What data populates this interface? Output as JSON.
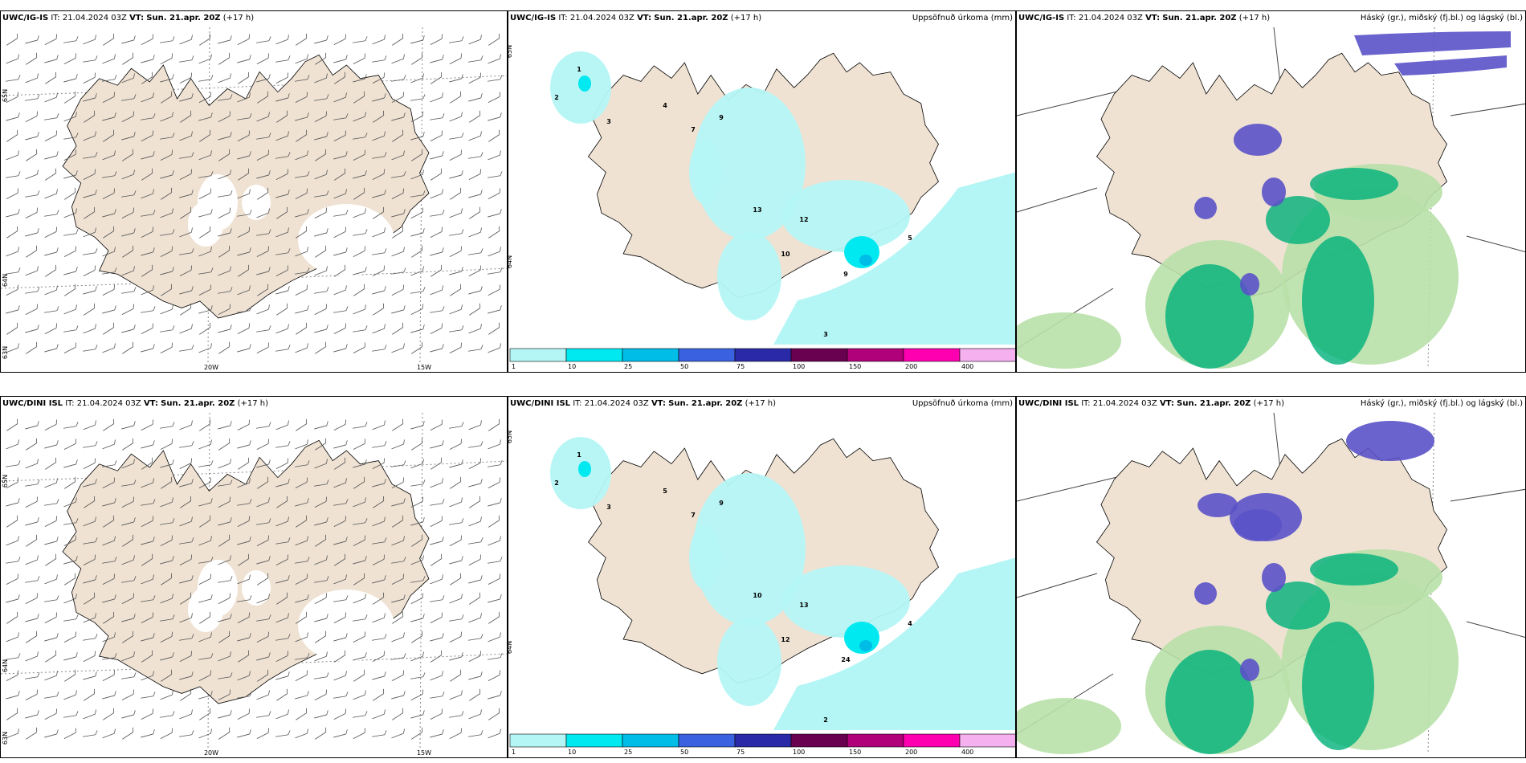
{
  "colors": {
    "land": "#efe2d3",
    "ice": "#ffffff",
    "precip_1": "#b4f5f5",
    "precip_10": "#00e8f0",
    "precip_25": "#00bde8",
    "precip_50": "#3a62e0",
    "precip_75": "#2a2aa8",
    "precip_100": "#6a0050",
    "precip_150": "#b0007a",
    "precip_200": "#ff00b0",
    "precip_400": "#f5b0f0",
    "cloud_high": "#5a52c8",
    "cloud_mid": "#00b07a",
    "cloud_low": "#b8e0a8"
  },
  "icons": {
    "wind_barb": "wind-barb-icon"
  },
  "rows": [
    {
      "model": "UWC/IG-IS",
      "it_text": "IT: 21.04.2024 03Z",
      "vt_label": "VT:",
      "vt_value": "Sun. 21.apr. 20Z",
      "lead": "(+17 h)",
      "wind_axis": {
        "lat_labels": [
          "65N",
          "64N",
          "63N"
        ],
        "lon_labels": [
          "20W",
          "15W"
        ]
      },
      "precip_title": "Uppsöfnuð úrkoma (mm)",
      "cloud_title": "Háský (gr.), miðský (fj.bl.) og lágský (bl.)",
      "precip_lat_labels": [
        "65N",
        "64N"
      ],
      "precip_values": [
        {
          "v": "1"
        },
        {
          "v": "2"
        },
        {
          "v": "3"
        },
        {
          "v": "4"
        },
        {
          "v": "7"
        },
        {
          "v": "9"
        },
        {
          "v": "13"
        },
        {
          "v": "12"
        },
        {
          "v": "10"
        },
        {
          "v": "9"
        },
        {
          "v": "5"
        },
        {
          "v": "3"
        }
      ]
    },
    {
      "model": "UWC/DINI ISL",
      "it_text": "IT: 21.04.2024 03Z",
      "vt_label": "VT:",
      "vt_value": "Sun. 21.apr. 20Z",
      "lead": "(+17 h)",
      "wind_axis": {
        "lat_labels": [
          "65N",
          "64N",
          "63N"
        ],
        "lon_labels": [
          "20W",
          "15W"
        ]
      },
      "precip_title": "Uppsöfnuð úrkoma (mm)",
      "cloud_title": "Háský (gr.), miðský (fj.bl.) og lágský (bl.)",
      "precip_lat_labels": [
        "65N",
        "64N"
      ],
      "precip_values": [
        {
          "v": "1"
        },
        {
          "v": "2"
        },
        {
          "v": "3"
        },
        {
          "v": "5"
        },
        {
          "v": "7"
        },
        {
          "v": "9"
        },
        {
          "v": "10"
        },
        {
          "v": "13"
        },
        {
          "v": "12"
        },
        {
          "v": "24"
        },
        {
          "v": "4"
        },
        {
          "v": "2"
        }
      ]
    }
  ],
  "legend": {
    "ticks": [
      "1",
      "10",
      "25",
      "50",
      "75",
      "100",
      "150",
      "200",
      "400"
    ]
  }
}
